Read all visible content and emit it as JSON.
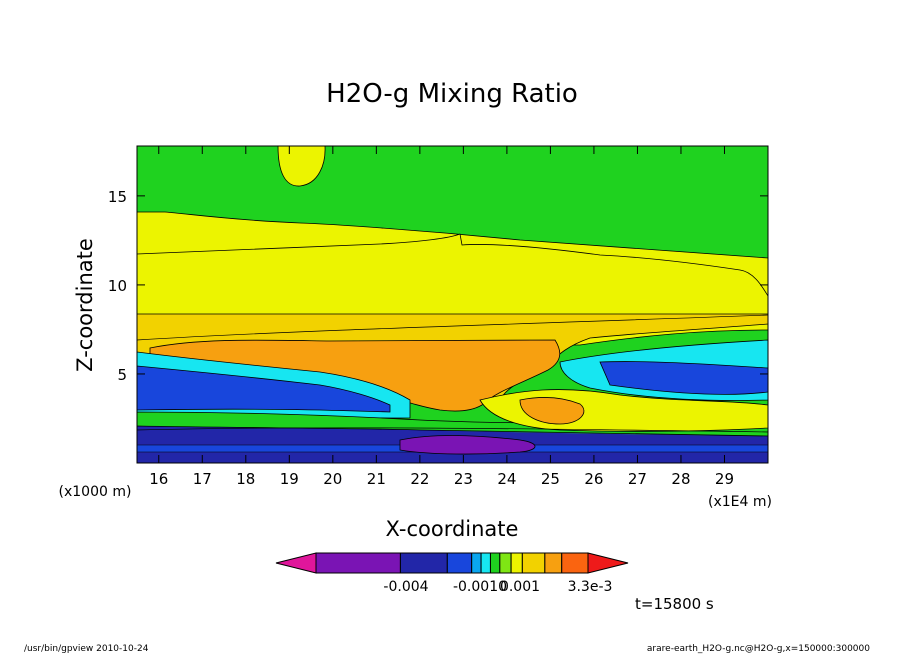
{
  "chart_data": {
    "type": "heatmap",
    "title": "H2O-g Mixing Ratio",
    "xlabel": "X-coordinate",
    "ylabel": "Z-coordinate",
    "x_unit_left": "(x1000 m)",
    "x_unit_right": "(x1E4 m)",
    "xlim": [
      15.5,
      30
    ],
    "ylim": [
      0,
      17.8
    ],
    "x_ticks": [
      "16",
      "17",
      "18",
      "19",
      "20",
      "21",
      "22",
      "23",
      "24",
      "25",
      "26",
      "27",
      "28",
      "29"
    ],
    "y_ticks": [
      "5",
      "10",
      "15"
    ],
    "colorbar": {
      "colors": [
        "#e0169b",
        "#7a14b4",
        "#2226a8",
        "#1846dc",
        "#0aa6ef",
        "#17e6f1",
        "#1fd21f",
        "#7fe614",
        "#ecf400",
        "#f2d200",
        "#f7a010",
        "#fa6410",
        "#ee1a1a"
      ],
      "labels": [
        "-0.004",
        "-0.0010",
        "0.001",
        "3.3e-3"
      ]
    },
    "bands": [
      {
        "name": "upper-green",
        "color": "#1fd21f"
      },
      {
        "name": "yellow",
        "color": "#ecf400"
      },
      {
        "name": "orange",
        "color": "#f7a010"
      },
      {
        "name": "cyan",
        "color": "#17e6f1"
      },
      {
        "name": "blue",
        "color": "#1846dc"
      },
      {
        "name": "navy",
        "color": "#2226a8"
      },
      {
        "name": "purple",
        "color": "#7a14b4"
      }
    ]
  },
  "time_label": "t=15800 s",
  "footer_left": "/usr/bin/gpview   2010-10-24",
  "footer_right": "arare-earth_H2O-g.nc@H2O-g,x=150000:300000"
}
